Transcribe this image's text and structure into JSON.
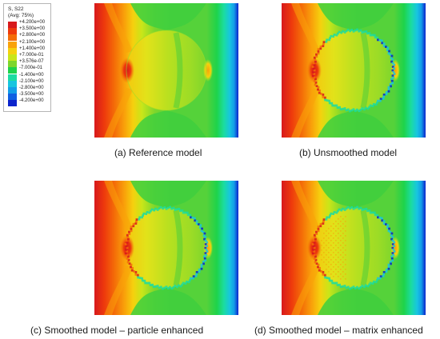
{
  "legend": {
    "title_line1": "S, S22",
    "title_line2": "(Avg: 75%)",
    "ticks": [
      "+4.200e+00",
      "+3.500e+00",
      "+2.800e+00",
      "+2.100e+00",
      "+1.400e+00",
      "+7.000e-01",
      "+3.576e-07",
      "-7.000e-01",
      "-1.400e+00",
      "-2.100e+00",
      "-2.800e+00",
      "-3.500e+00",
      "-4.200e+00"
    ],
    "colors": [
      "#d7191c",
      "#ee3a0c",
      "#f46d08",
      "#f9a20a",
      "#f5d10e",
      "#c8e619",
      "#7dd62c",
      "#1ed34a",
      "#1bdca1",
      "#17c5df",
      "#139ee8",
      "#1060e2",
      "#0b24cc"
    ]
  },
  "panels": [
    {
      "caption": "(a) Reference model",
      "variant": "reference"
    },
    {
      "caption": "(b) Unsmoothed model",
      "variant": "unsmoothed"
    },
    {
      "caption": "(c) Smoothed model – particle enhanced",
      "variant": "particle"
    },
    {
      "caption": "(d) Smoothed model – matrix enhanced",
      "variant": "matrix"
    }
  ]
}
